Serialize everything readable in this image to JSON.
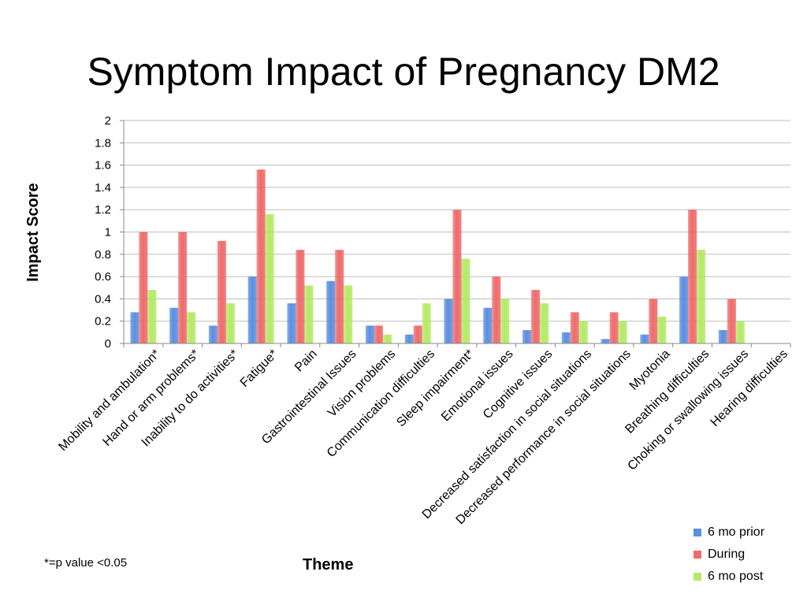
{
  "title": "Symptom Impact of Pregnancy DM2",
  "footnote": "*=p value <0.05",
  "colors": {
    "prior": "#5b8fe0",
    "during": "#ef6b6b",
    "post": "#b4ea66",
    "grid": "#bdbdbd"
  },
  "chart_data": {
    "type": "bar",
    "title": "Symptom Impact of Pregnancy DM2",
    "xlabel": "Theme",
    "ylabel": "Impact Score",
    "ylim": [
      0,
      2
    ],
    "yticks": [
      "0",
      "0.2",
      "0.4",
      "0.6",
      "0.8",
      "1",
      "1.2",
      "1.4",
      "1.6",
      "1.8",
      "2"
    ],
    "grid": true,
    "legend_position": "bottom-right",
    "categories": [
      "Mobility and ambulation*",
      "Hand or arm problems*",
      "Inability to do activities*",
      "Fatigue*",
      "Pain",
      "Gastrointestinal Issues",
      "Vision problems",
      "Communication difficulties",
      "Sleep impairment*",
      "Emotional issues",
      "Cognitive issues",
      "Decreased satisfaction in social situations",
      "Decreased performance in social situations",
      "Myotonia",
      "Breathing difficulties",
      "Choking or swallowing issues",
      "Hearing difficulties"
    ],
    "series": [
      {
        "name": "6 mo prior",
        "values": [
          0.28,
          0.32,
          0.16,
          0.6,
          0.36,
          0.56,
          0.16,
          0.08,
          0.4,
          0.32,
          0.12,
          0.1,
          0.04,
          0.08,
          0.6,
          0.12,
          0
        ]
      },
      {
        "name": "During",
        "values": [
          1.0,
          1.0,
          0.92,
          1.56,
          0.84,
          0.84,
          0.16,
          0.16,
          1.2,
          0.6,
          0.48,
          0.28,
          0.28,
          0.4,
          1.2,
          0.4,
          0
        ]
      },
      {
        "name": "6 mo post",
        "values": [
          0.48,
          0.28,
          0.36,
          1.16,
          0.52,
          0.52,
          0.08,
          0.36,
          0.76,
          0.4,
          0.36,
          0.2,
          0.2,
          0.24,
          0.84,
          0.2,
          0
        ]
      }
    ]
  }
}
